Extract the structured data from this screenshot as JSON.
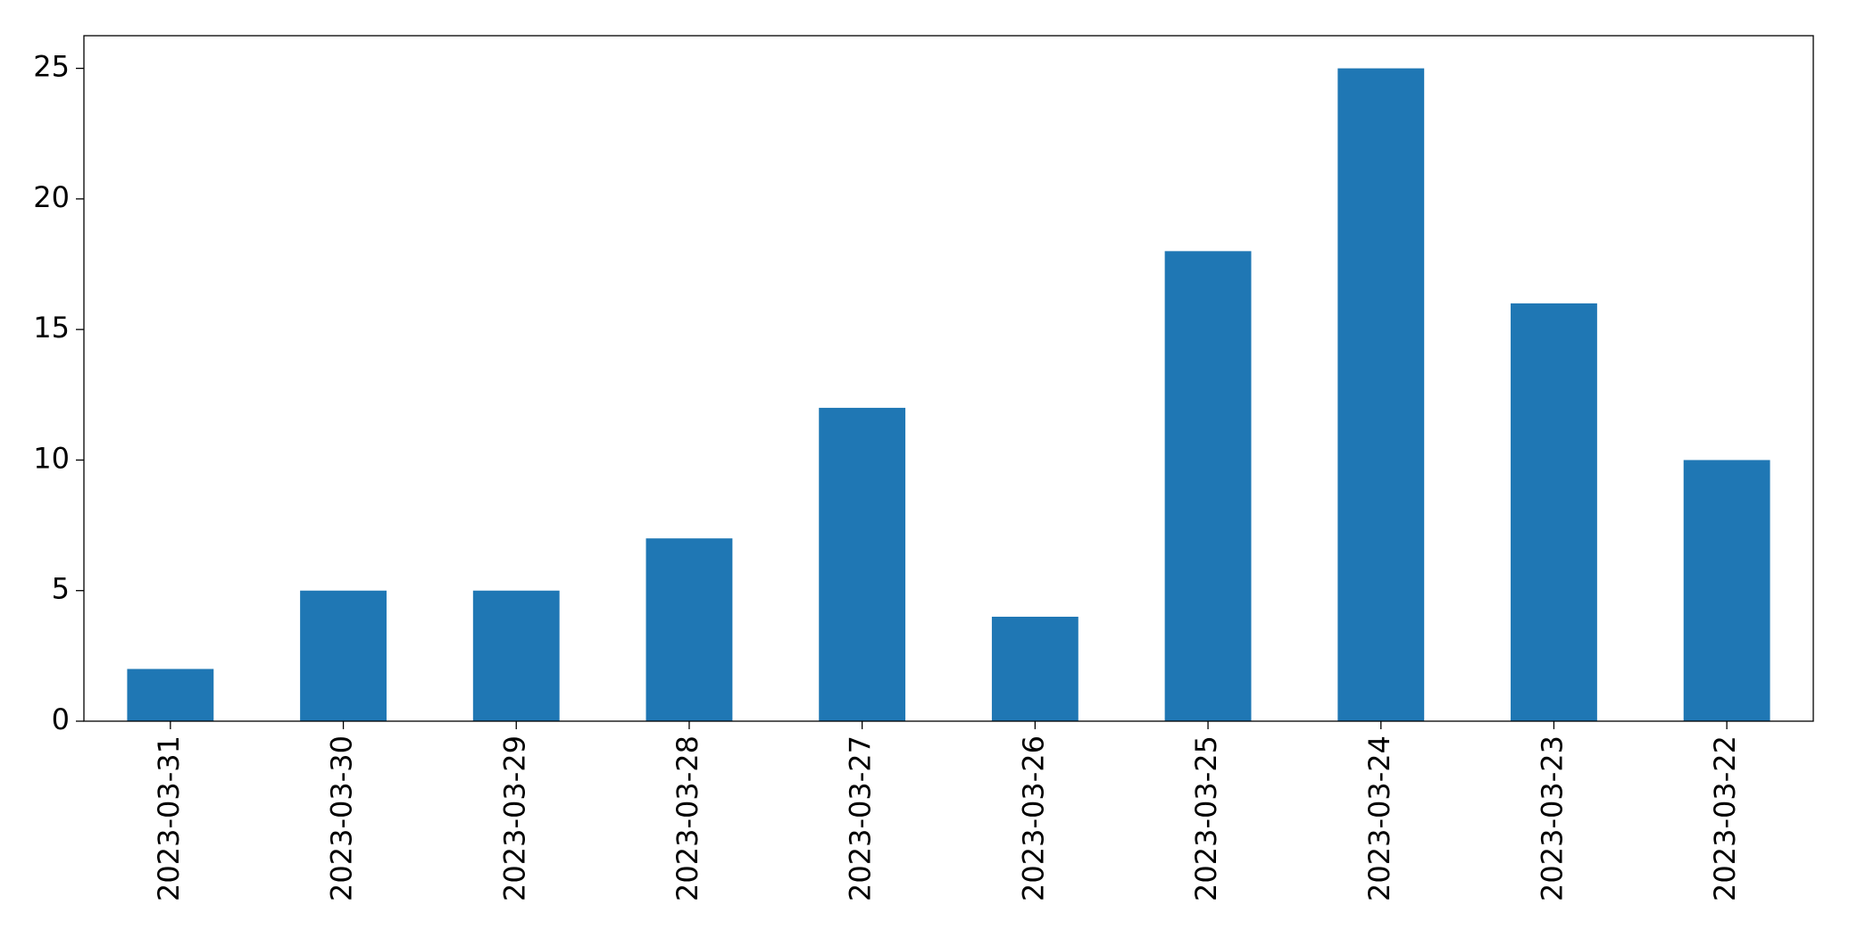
{
  "chart_data": {
    "type": "bar",
    "categories": [
      "2023-03-31",
      "2023-03-30",
      "2023-03-29",
      "2023-03-28",
      "2023-03-27",
      "2023-03-26",
      "2023-03-25",
      "2023-03-24",
      "2023-03-23",
      "2023-03-22"
    ],
    "values": [
      2,
      5,
      5,
      7,
      12,
      4,
      18,
      25,
      16,
      10
    ],
    "color": "#1f77b4",
    "ylim": [
      0,
      26.25
    ],
    "yticks": [
      0,
      5,
      10,
      15,
      20,
      25
    ],
    "grid": false
  }
}
